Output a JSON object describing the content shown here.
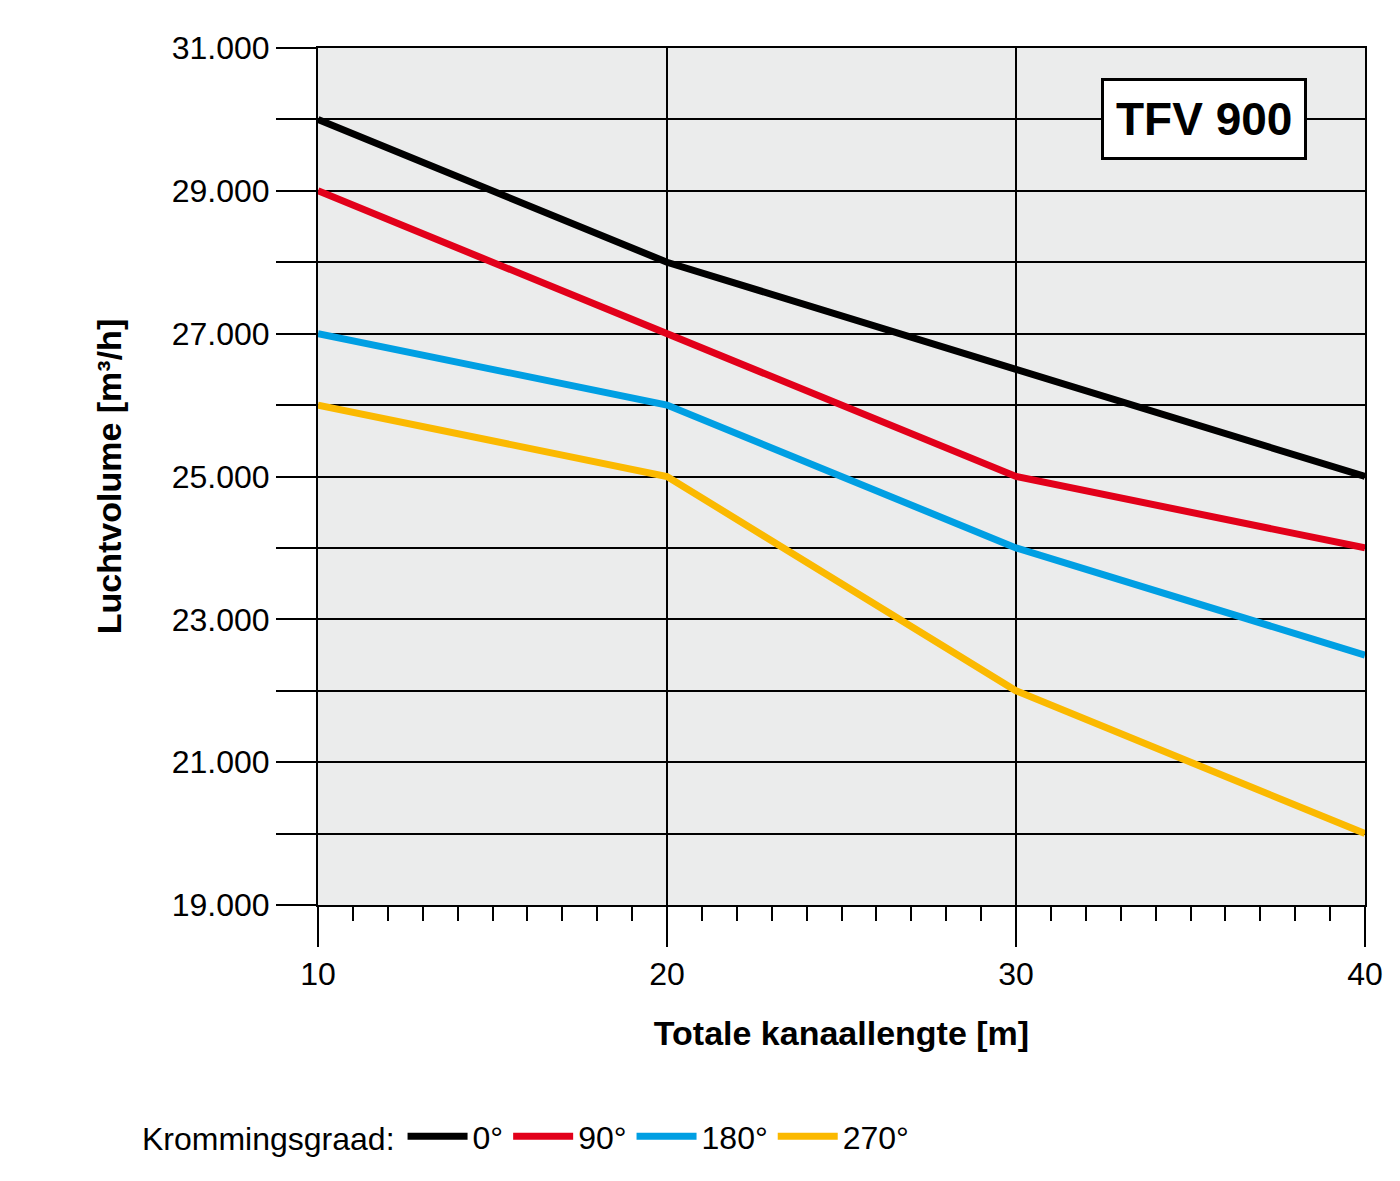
{
  "chart_data": {
    "type": "line",
    "title": "TFV 900",
    "x_label": "Totale kanaallengte [m]",
    "y_label": "Luchtvolume [m³/h]",
    "legend_title": "Krommingsgraad:",
    "x": [
      10,
      20,
      30,
      40
    ],
    "series": [
      {
        "name": "0°",
        "color": "#000000",
        "values": [
          30000,
          28000,
          26500,
          25000
        ]
      },
      {
        "name": "90°",
        "color": "#e2001a",
        "values": [
          29000,
          27000,
          25000,
          24000
        ]
      },
      {
        "name": "180°",
        "color": "#009fe3",
        "values": [
          27000,
          26000,
          24000,
          22500
        ]
      },
      {
        "name": "270°",
        "color": "#fbb900",
        "values": [
          26000,
          25000,
          22000,
          20000
        ]
      }
    ],
    "xlim": [
      10,
      40
    ],
    "ylim": [
      19000,
      31000
    ],
    "xticks": [
      10,
      20,
      30,
      40
    ],
    "yticks": [
      {
        "value": 19000,
        "label": "19.000"
      },
      {
        "value": 21000,
        "label": "21.000"
      },
      {
        "value": 23000,
        "label": "23.000"
      },
      {
        "value": 25000,
        "label": "25.000"
      },
      {
        "value": 27000,
        "label": "27.000"
      },
      {
        "value": 29000,
        "label": "29.000"
      },
      {
        "value": 31000,
        "label": "31.000"
      }
    ],
    "grid": true,
    "legend": "bottom"
  }
}
